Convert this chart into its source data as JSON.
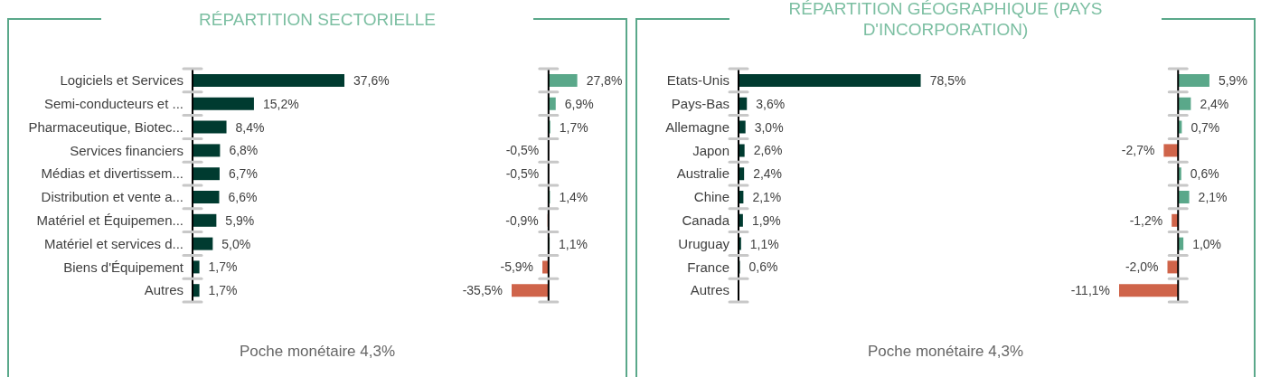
{
  "chart_data": [
    {
      "type": "bar",
      "orientation": "horizontal",
      "title": "RÉPARTITION SECTORIELLE",
      "categories": [
        "Logiciels et Services",
        "Semi-conducteurs et ...",
        "Pharmaceutique, Biotec...",
        "Services financiers",
        "Médias et divertissem...",
        "Distribution et vente a...",
        "Matériel et Équipemen...",
        "Matériel et services d...",
        "Biens d'Équipement",
        "Autres"
      ],
      "values": [
        37.6,
        15.2,
        8.4,
        6.8,
        6.7,
        6.6,
        5.9,
        5.0,
        1.7,
        1.7
      ],
      "color": "#003b30",
      "value_labels": [
        "37,6%",
        "15,2%",
        "8,4%",
        "6,8%",
        "6,7%",
        "6,6%",
        "5,9%",
        "5,0%",
        "1,7%",
        "1,7%"
      ],
      "annotations": [
        "Poche monétaire 4,3%"
      ]
    },
    {
      "type": "bar",
      "orientation": "horizontal",
      "categories": [
        null,
        null,
        null,
        null,
        null,
        null,
        null,
        null,
        null,
        null
      ],
      "values": [
        27.8,
        6.9,
        1.7,
        -0.5,
        -0.5,
        1.4,
        -0.9,
        1.1,
        -5.9,
        -35.5
      ],
      "colors": [
        "#5aa88a",
        "#5aa88a",
        "#5aa88a",
        "#cf644a",
        "#cf644a",
        "#5aa88a",
        "#cf644a",
        "#5aa88a",
        "#cf644a",
        "#cf644a"
      ],
      "value_labels": [
        "27,8%",
        "6,9%",
        "1,7%",
        "-0,5%",
        "-0,5%",
        "1,4%",
        "-0,9%",
        "1,1%",
        "-5,9%",
        "-35,5%"
      ]
    },
    {
      "type": "bar",
      "orientation": "horizontal",
      "title": "RÉPARTITION GÉOGRAPHIQUE (PAYS D'INCORPORATION)",
      "categories": [
        "Etats-Unis",
        "Pays-Bas",
        "Allemagne",
        "Japon",
        "Australie",
        "Chine",
        "Canada",
        "Uruguay",
        "France",
        "Autres"
      ],
      "values": [
        78.5,
        3.6,
        3.0,
        2.6,
        2.4,
        2.1,
        1.9,
        1.1,
        0.6,
        null
      ],
      "color": "#003b30",
      "value_labels": [
        "78,5%",
        "3,6%",
        "3,0%",
        "2,6%",
        "2,4%",
        "2,1%",
        "1,9%",
        "1,1%",
        "0,6%",
        null
      ],
      "annotations": [
        "Poche monétaire 4,3%"
      ]
    },
    {
      "type": "bar",
      "orientation": "horizontal",
      "categories": [
        null,
        null,
        null,
        null,
        null,
        null,
        null,
        null,
        null,
        null
      ],
      "values": [
        5.9,
        2.4,
        0.7,
        -2.7,
        0.6,
        2.1,
        -1.2,
        1.0,
        -2.0,
        -11.1
      ],
      "colors": [
        "#5aa88a",
        "#5aa88a",
        "#5aa88a",
        "#cf644a",
        "#5aa88a",
        "#5aa88a",
        "#cf644a",
        "#5aa88a",
        "#cf644a",
        "#cf644a"
      ],
      "value_labels": [
        "5,9%",
        "2,4%",
        "0,7%",
        "-2,7%",
        "0,6%",
        "2,1%",
        "-1,2%",
        "1,0%",
        "-2,0%",
        "-11,1%"
      ]
    }
  ]
}
